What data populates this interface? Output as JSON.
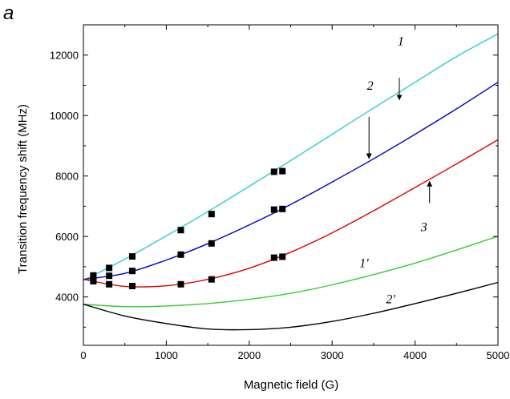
{
  "chart_data": {
    "type": "line",
    "panel_label": "a",
    "xlabel": "Magnetic field (G)",
    "ylabel": "Transition frequency shift (MHz)",
    "xlim": [
      0,
      5000
    ],
    "ylim": [
      2400,
      13000
    ],
    "xticks": [
      0,
      1000,
      2000,
      3000,
      4000,
      5000
    ],
    "yticks": [
      4000,
      6000,
      8000,
      10000,
      12000
    ],
    "grid": false,
    "series": [
      {
        "name": "1",
        "color": "#33cccc",
        "x": [
          0,
          500,
          1000,
          1500,
          2000,
          2500,
          3000,
          3500,
          4000,
          4500,
          5000
        ],
        "y": [
          4550,
          5250,
          6020,
          6820,
          7660,
          8510,
          9380,
          10250,
          11100,
          11950,
          12700
        ]
      },
      {
        "name": "2",
        "color": "#0000cc",
        "x": [
          0,
          500,
          1000,
          1500,
          2000,
          2500,
          3000,
          3500,
          4000,
          4500,
          5000
        ],
        "y": [
          4580,
          4780,
          5220,
          5760,
          6380,
          7060,
          7800,
          8570,
          9380,
          10220,
          11100
        ]
      },
      {
        "name": "3",
        "color": "#dd0000",
        "x": [
          0,
          500,
          1000,
          1500,
          2000,
          2500,
          3000,
          3500,
          4000,
          4500,
          5000
        ],
        "y": [
          4580,
          4350,
          4370,
          4580,
          4950,
          5480,
          6120,
          6850,
          7620,
          8400,
          9200
        ]
      },
      {
        "name": "1'",
        "color": "#33cc33",
        "x": [
          0,
          500,
          1000,
          1500,
          2000,
          2500,
          3000,
          3500,
          4000,
          4500,
          5000
        ],
        "y": [
          3760,
          3680,
          3700,
          3780,
          3920,
          4120,
          4400,
          4740,
          5120,
          5550,
          6010
        ]
      },
      {
        "name": "2'",
        "color": "#000000",
        "x": [
          0,
          500,
          1000,
          1500,
          2000,
          2500,
          3000,
          3500,
          4000,
          4500,
          5000
        ],
        "y": [
          3760,
          3370,
          3120,
          2940,
          2920,
          3000,
          3190,
          3460,
          3780,
          4120,
          4480
        ]
      }
    ],
    "points": [
      {
        "x": 120,
        "y": 4710
      },
      {
        "x": 120,
        "y": 4610
      },
      {
        "x": 120,
        "y": 4520
      },
      {
        "x": 310,
        "y": 4960
      },
      {
        "x": 310,
        "y": 4700
      },
      {
        "x": 310,
        "y": 4420
      },
      {
        "x": 590,
        "y": 5340
      },
      {
        "x": 590,
        "y": 4860
      },
      {
        "x": 590,
        "y": 4360
      },
      {
        "x": 1175,
        "y": 6210
      },
      {
        "x": 1175,
        "y": 5400
      },
      {
        "x": 1175,
        "y": 4420
      },
      {
        "x": 1545,
        "y": 6740
      },
      {
        "x": 1545,
        "y": 5770
      },
      {
        "x": 1545,
        "y": 4580
      },
      {
        "x": 2300,
        "y": 8140
      },
      {
        "x": 2300,
        "y": 6890
      },
      {
        "x": 2300,
        "y": 5300
      },
      {
        "x": 2400,
        "y": 8160
      },
      {
        "x": 2400,
        "y": 6910
      },
      {
        "x": 2400,
        "y": 5330
      }
    ],
    "annotations": [
      {
        "text": "1",
        "x": 3790,
        "y": 12330,
        "arrow_from": [
          3810,
          11250
        ],
        "arrow_to": [
          3810,
          10520
        ]
      },
      {
        "text": "2",
        "x": 3420,
        "y": 10850,
        "arrow_from": [
          3445,
          9950
        ],
        "arrow_to": [
          3445,
          8580
        ]
      },
      {
        "text": "3",
        "x": 4070,
        "y": 6180,
        "arrow_from": [
          4175,
          7100
        ],
        "arrow_to": [
          4175,
          7820
        ]
      },
      {
        "text": "1'",
        "x": 3330,
        "y": 4980
      },
      {
        "text": "2'",
        "x": 3650,
        "y": 3790
      }
    ]
  }
}
